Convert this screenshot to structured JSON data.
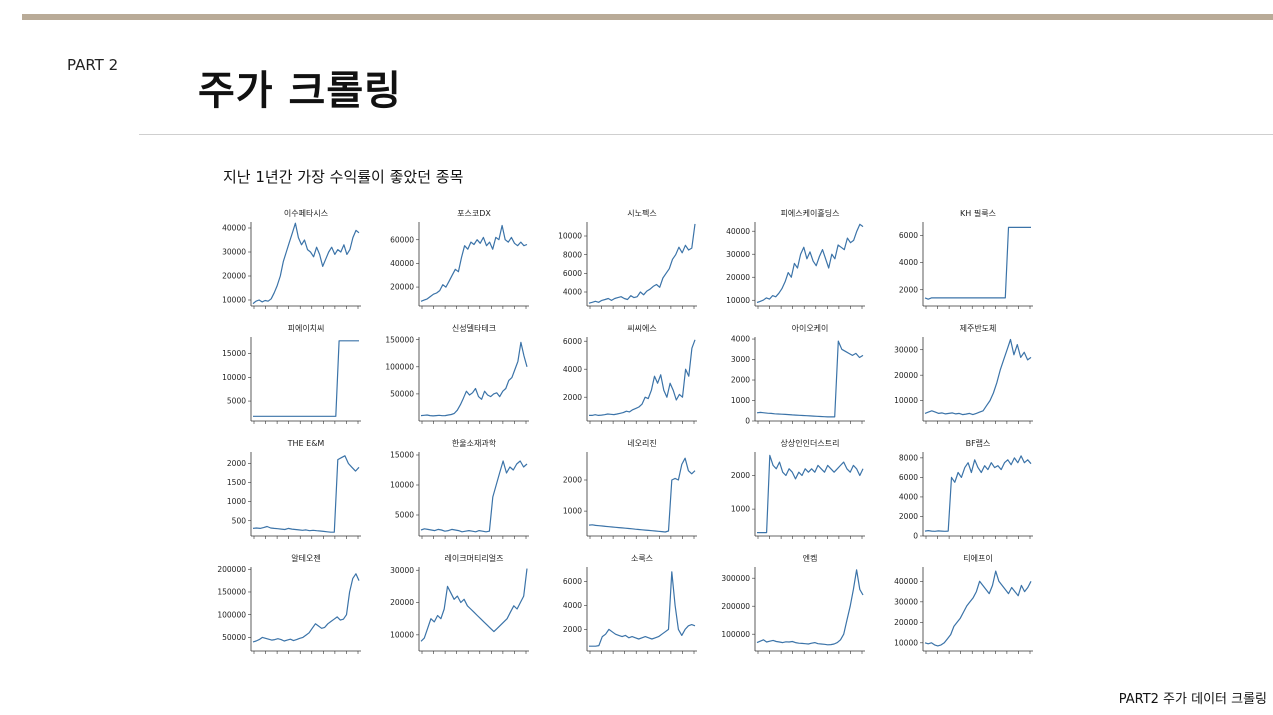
{
  "header": {
    "part": "PART 2",
    "title": "주가 크롤링"
  },
  "subtitle": "지난 1년간 가장 수익률이 좋았던 종목",
  "footer": "PART2 주가 데이터 크롤링",
  "colors": {
    "accent_bar": "#b9ab98",
    "line": "#3b73a8",
    "axis": "#333333"
  },
  "chart_data": [
    {
      "type": "line",
      "title": "이수페타시스",
      "yticks": [
        10000,
        20000,
        30000,
        40000
      ],
      "ylim": [
        7500,
        42500
      ],
      "values": [
        8500,
        9500,
        10000,
        9200,
        9800,
        9500,
        10500,
        13000,
        16000,
        20000,
        26000,
        30000,
        34000,
        38000,
        42000,
        36000,
        33000,
        35000,
        31000,
        30000,
        28000,
        32000,
        29000,
        24000,
        27000,
        30000,
        32000,
        29000,
        31000,
        30000,
        33000,
        29000,
        31000,
        36000,
        39000,
        38000
      ]
    },
    {
      "type": "line",
      "title": "포스코DX",
      "yticks": [
        20000,
        40000,
        60000
      ],
      "ylim": [
        4000,
        75000
      ],
      "values": [
        8000,
        9000,
        10000,
        12000,
        14000,
        15000,
        17000,
        22000,
        20000,
        25000,
        30000,
        35000,
        33000,
        45000,
        55000,
        52000,
        58000,
        56000,
        60000,
        57000,
        62000,
        55000,
        58000,
        52000,
        62000,
        60000,
        72000,
        60000,
        58000,
        62000,
        57000,
        55000,
        58000,
        55000,
        56000
      ]
    },
    {
      "type": "line",
      "title": "시노펙스",
      "yticks": [
        4000,
        6000,
        8000,
        10000
      ],
      "ylim": [
        2500,
        11500
      ],
      "values": [
        2800,
        2900,
        3000,
        2900,
        3100,
        3200,
        3300,
        3100,
        3300,
        3400,
        3500,
        3300,
        3200,
        3600,
        3400,
        3500,
        4000,
        3700,
        4100,
        4300,
        4600,
        4800,
        4500,
        5500,
        6000,
        6500,
        7500,
        8000,
        8800,
        8200,
        9000,
        8500,
        8700,
        11300
      ]
    },
    {
      "type": "line",
      "title": "피에스케이홀딩스",
      "yticks": [
        10000,
        20000,
        30000,
        40000
      ],
      "ylim": [
        7500,
        44000
      ],
      "values": [
        9000,
        9500,
        10000,
        11000,
        10500,
        12000,
        11500,
        13000,
        15000,
        18000,
        22000,
        20000,
        26000,
        24000,
        30000,
        33000,
        28000,
        31000,
        27000,
        25000,
        29000,
        32000,
        28000,
        24000,
        30000,
        28000,
        34000,
        33000,
        32000,
        37000,
        35000,
        36000,
        40000,
        43000,
        42000
      ]
    },
    {
      "type": "line",
      "title": "KH 필룩스",
      "yticks": [
        2000,
        4000,
        6000
      ],
      "ylim": [
        800,
        7000
      ],
      "values": [
        1400,
        1300,
        1400,
        1400,
        1400,
        1400,
        1400,
        1400,
        1400,
        1400,
        1400,
        1400,
        1400,
        1400,
        1400,
        1400,
        1400,
        1400,
        1400,
        1400,
        1400,
        1400,
        1400,
        1400,
        1400,
        1400,
        6600,
        6600,
        6600,
        6600,
        6600,
        6600,
        6600,
        6600
      ]
    },
    {
      "type": "line",
      "title": "피에이치씨",
      "yticks": [
        5000,
        10000,
        15000
      ],
      "ylim": [
        800,
        18500
      ],
      "values": [
        1800,
        1800,
        1800,
        1800,
        1800,
        1800,
        1800,
        1800,
        1800,
        1800,
        1800,
        1800,
        1800,
        1800,
        1800,
        1800,
        1800,
        1800,
        1800,
        1800,
        1800,
        1800,
        1800,
        1800,
        1800,
        1800,
        17700,
        17700,
        17700,
        17700,
        17700,
        17700,
        17700
      ]
    },
    {
      "type": "line",
      "title": "신성델타테크",
      "yticks": [
        50000,
        100000,
        150000
      ],
      "ylim": [
        0,
        155000
      ],
      "values": [
        10000,
        10500,
        11000,
        10000,
        9500,
        10000,
        10500,
        9800,
        10000,
        11000,
        12000,
        14000,
        20000,
        30000,
        42000,
        55000,
        48000,
        52000,
        60000,
        45000,
        40000,
        55000,
        48000,
        45000,
        50000,
        52000,
        45000,
        55000,
        60000,
        75000,
        80000,
        95000,
        110000,
        145000,
        120000,
        100000
      ]
    },
    {
      "type": "line",
      "title": "씨씨에스",
      "yticks": [
        2000,
        4000,
        6000
      ],
      "ylim": [
        300,
        6300
      ],
      "values": [
        700,
        700,
        750,
        700,
        720,
        750,
        800,
        780,
        760,
        800,
        850,
        900,
        1000,
        950,
        1100,
        1200,
        1300,
        1500,
        2000,
        1900,
        2500,
        3500,
        3000,
        3600,
        2500,
        2000,
        3000,
        2500,
        1800,
        2200,
        2000,
        4000,
        3500,
        5500,
        6100
      ]
    },
    {
      "type": "line",
      "title": "아이오케이",
      "yticks": [
        0,
        1000,
        2000,
        3000,
        4000
      ],
      "ylim": [
        0,
        4100
      ],
      "values": [
        400,
        420,
        400,
        380,
        370,
        350,
        340,
        330,
        320,
        310,
        300,
        290,
        280,
        270,
        260,
        250,
        240,
        230,
        220,
        210,
        200,
        200,
        200,
        3900,
        3500,
        3400,
        3300,
        3200,
        3300,
        3100,
        3200
      ]
    },
    {
      "type": "line",
      "title": "제주반도체",
      "yticks": [
        10000,
        20000,
        30000
      ],
      "ylim": [
        2000,
        35000
      ],
      "values": [
        5000,
        5500,
        6000,
        5500,
        5000,
        5200,
        4800,
        5000,
        5200,
        4800,
        5000,
        4500,
        4700,
        5000,
        4500,
        5000,
        5500,
        6000,
        8000,
        10000,
        13000,
        17000,
        22000,
        26000,
        30000,
        34000,
        28000,
        32000,
        27000,
        29000,
        26000,
        27000
      ]
    },
    {
      "type": "line",
      "title": "THE E&M",
      "yticks": [
        500,
        1000,
        1500,
        2000
      ],
      "ylim": [
        100,
        2300
      ],
      "values": [
        300,
        310,
        300,
        320,
        350,
        310,
        300,
        290,
        280,
        270,
        300,
        280,
        270,
        260,
        250,
        260,
        240,
        250,
        240,
        230,
        220,
        210,
        200,
        200,
        2100,
        2150,
        2200,
        2000,
        1900,
        1800,
        1900
      ]
    },
    {
      "type": "line",
      "title": "한울소재과학",
      "yticks": [
        5000,
        10000,
        15000
      ],
      "ylim": [
        1500,
        15500
      ],
      "values": [
        2500,
        2700,
        2600,
        2500,
        2400,
        2600,
        2500,
        2300,
        2400,
        2600,
        2500,
        2400,
        2200,
        2300,
        2400,
        2300,
        2200,
        2400,
        2300,
        2200,
        2300,
        8000,
        10000,
        12000,
        14000,
        12000,
        13000,
        12500,
        13500,
        14000,
        13000,
        13500
      ]
    },
    {
      "type": "line",
      "title": "네오리진",
      "yticks": [
        1000,
        2000
      ],
      "ylim": [
        200,
        2900
      ],
      "values": [
        550,
        560,
        540,
        530,
        520,
        510,
        500,
        490,
        480,
        470,
        460,
        450,
        440,
        430,
        420,
        410,
        400,
        390,
        380,
        370,
        360,
        350,
        340,
        330,
        360,
        2000,
        2050,
        2000,
        2500,
        2700,
        2300,
        2200,
        2300
      ]
    },
    {
      "type": "line",
      "title": "상상인인더스트리",
      "yticks": [
        1000,
        2000
      ],
      "ylim": [
        200,
        2700
      ],
      "values": [
        300,
        300,
        300,
        300,
        2600,
        2300,
        2200,
        2400,
        2100,
        2000,
        2200,
        2100,
        1900,
        2100,
        2000,
        2200,
        2100,
        2200,
        2100,
        2300,
        2200,
        2100,
        2300,
        2200,
        2100,
        2200,
        2300,
        2400,
        2200,
        2100,
        2300,
        2200,
        2000,
        2200
      ]
    },
    {
      "type": "line",
      "title": "BF랩스",
      "yticks": [
        0,
        2000,
        4000,
        6000,
        8000
      ],
      "ylim": [
        0,
        8600
      ],
      "values": [
        500,
        550,
        500,
        480,
        520,
        500,
        480,
        500,
        6000,
        5500,
        6500,
        6000,
        7000,
        7500,
        6500,
        7800,
        7000,
        6500,
        7200,
        6800,
        7500,
        7000,
        7200,
        6800,
        7500,
        7800,
        7300,
        8000,
        7500,
        8200,
        7500,
        7800,
        7400
      ]
    },
    {
      "type": "line",
      "title": "알테오젠",
      "yticks": [
        50000,
        100000,
        150000,
        200000
      ],
      "ylim": [
        20000,
        205000
      ],
      "values": [
        40000,
        42000,
        45000,
        50000,
        48000,
        46000,
        44000,
        45000,
        47000,
        45000,
        42000,
        44000,
        46000,
        43000,
        45000,
        48000,
        50000,
        55000,
        60000,
        70000,
        80000,
        75000,
        70000,
        72000,
        80000,
        85000,
        90000,
        95000,
        88000,
        90000,
        100000,
        150000,
        180000,
        190000,
        175000
      ]
    },
    {
      "type": "line",
      "title": "레이크머티리얼즈",
      "yticks": [
        10000,
        20000,
        30000
      ],
      "ylim": [
        5000,
        31000
      ],
      "values": [
        8000,
        9000,
        12000,
        15000,
        14000,
        16000,
        15000,
        18000,
        25000,
        23000,
        21000,
        22000,
        20000,
        21000,
        19000,
        18000,
        17000,
        16000,
        15000,
        14000,
        13000,
        12000,
        11000,
        12000,
        13000,
        14000,
        15000,
        17000,
        19000,
        18000,
        20000,
        22000,
        30500
      ]
    },
    {
      "type": "line",
      "title": "소룩스",
      "yticks": [
        2000,
        4000,
        6000
      ],
      "ylim": [
        200,
        7200
      ],
      "values": [
        600,
        600,
        600,
        650,
        1400,
        1600,
        2000,
        1800,
        1600,
        1500,
        1400,
        1500,
        1300,
        1400,
        1300,
        1200,
        1300,
        1400,
        1300,
        1200,
        1300,
        1400,
        1600,
        1800,
        2000,
        6800,
        4000,
        2000,
        1500,
        2000,
        2300,
        2400,
        2300
      ]
    },
    {
      "type": "line",
      "title": "엔켐",
      "yticks": [
        100000,
        200000,
        300000
      ],
      "ylim": [
        40000,
        340000
      ],
      "values": [
        70000,
        75000,
        80000,
        72000,
        75000,
        78000,
        74000,
        72000,
        70000,
        73000,
        72000,
        74000,
        70000,
        68000,
        67000,
        66000,
        65000,
        68000,
        70000,
        66000,
        65000,
        64000,
        62000,
        63000,
        65000,
        70000,
        80000,
        100000,
        150000,
        200000,
        260000,
        330000,
        260000,
        240000
      ]
    },
    {
      "type": "line",
      "title": "티에프이",
      "yticks": [
        10000,
        20000,
        30000,
        40000
      ],
      "ylim": [
        6000,
        47000
      ],
      "values": [
        10000,
        9500,
        10000,
        9000,
        8500,
        9000,
        10000,
        12000,
        14000,
        18000,
        20000,
        22000,
        25000,
        28000,
        30000,
        32000,
        35000,
        40000,
        38000,
        36000,
        34000,
        38000,
        45000,
        40000,
        38000,
        36000,
        34000,
        37000,
        35000,
        33000,
        38000,
        35000,
        37000,
        40000
      ]
    }
  ]
}
